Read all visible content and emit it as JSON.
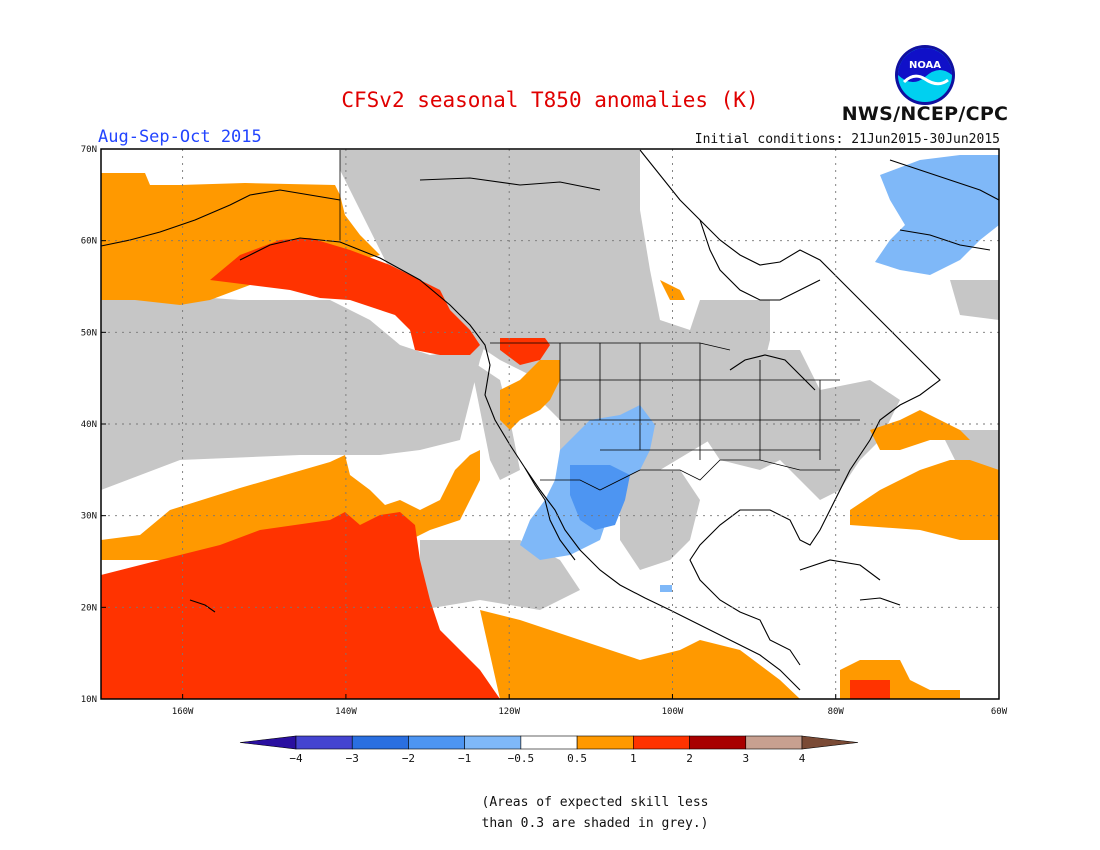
{
  "title": "CFSv2 seasonal T850 anomalies (K)",
  "agency": "NWS/NCEP/CPC",
  "logo_text": "NOAA",
  "period": "Aug-Sep-Oct 2015",
  "initial_conditions": "Initial conditions: 21Jun2015-30Jun2015",
  "map": {
    "lat_ticks": [
      "10N",
      "20N",
      "30N",
      "40N",
      "50N",
      "60N",
      "70N"
    ],
    "lon_ticks": [
      "160W",
      "140W",
      "120W",
      "100W",
      "80W",
      "60W"
    ],
    "lat_range": [
      10,
      70
    ],
    "lon_range": [
      -170,
      -60
    ],
    "grid": true
  },
  "colorbar": {
    "labels": [
      "−4",
      "−3",
      "−2",
      "−1",
      "−0.5",
      "0.5",
      "1",
      "2",
      "3",
      "4"
    ],
    "colors": [
      "#2a0fa0",
      "#4444d0",
      "#2a6fe0",
      "#4d95f2",
      "#7fb8f8",
      "#ffffff",
      "#ff9900",
      "#ff3300",
      "#a80000",
      "#c8a090",
      "#7a4a35"
    ]
  },
  "note": [
    "(Areas of expected skill less",
    "than 0.3 are shaded in grey.)"
  ],
  "colors": {
    "grey": "#c6c6c6",
    "orange": "#ff9900",
    "red": "#ff3300",
    "light_blue": "#7fb8f8",
    "blue": "#4d95f2",
    "title_red": "#e00000",
    "period_blue": "#2244ff"
  }
}
